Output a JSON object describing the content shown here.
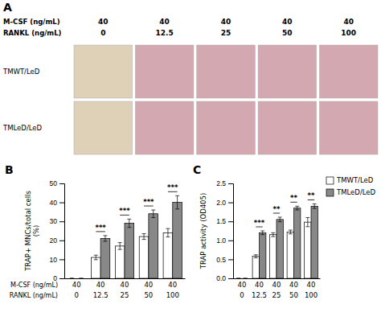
{
  "chart_data": [
    {
      "type": "tiles",
      "title": "A",
      "row_headers": [
        {
          "label": "M-CSF (ng/mL)",
          "values": [
            "40",
            "40",
            "40",
            "40",
            "40"
          ]
        },
        {
          "label": "RANKL (ng/mL)",
          "values": [
            "0",
            "12.5",
            "25",
            "50",
            "100"
          ]
        }
      ],
      "row_labels": [
        "TMWT/LeD",
        "TMLeD/LeD"
      ],
      "colors": [
        "#dfd0b8",
        "#d4a8b0",
        "#d4a8b0",
        "#d4a8b0",
        "#d4a8b0"
      ]
    },
    {
      "type": "bar",
      "title": "B",
      "y_label": "TRAP+ MNCs/total cells\n(%)",
      "categories": [
        "0",
        "12.5",
        "25",
        "50",
        "100"
      ],
      "x_label": "RANKL (ng/mL)",
      "categories_top": [
        "40",
        "40",
        "40",
        "40",
        "40"
      ],
      "x_label_top": "M-CSF (ng/mL)",
      "series": [
        {
          "name": "TMWT/LeD",
          "color": "#ffffff",
          "values": [
            0,
            11,
            17,
            22,
            24
          ],
          "errors": [
            0,
            1.2,
            1.8,
            1.5,
            2.2
          ]
        },
        {
          "name": "TMLeD/LeD",
          "color": "#888888",
          "values": [
            0,
            21,
            29,
            34,
            40
          ],
          "errors": [
            0,
            1.5,
            2.2,
            2.0,
            3.5
          ]
        }
      ],
      "significance": [
        null,
        "***",
        "***",
        "***",
        "***"
      ],
      "ylim": [
        0,
        50
      ],
      "yticks": [
        0,
        10,
        20,
        30,
        40,
        50
      ]
    },
    {
      "type": "bar",
      "title": "C",
      "y_label": "TRAP activity (OD405)",
      "categories": [
        "0",
        "12.5",
        "25",
        "50",
        "100"
      ],
      "categories_top": [
        "40",
        "40",
        "40",
        "40",
        "40"
      ],
      "series": [
        {
          "name": "TMWT/LeD",
          "color": "#ffffff",
          "values": [
            0,
            0.58,
            1.15,
            1.22,
            1.48
          ],
          "errors": [
            0,
            0.04,
            0.05,
            0.05,
            0.12
          ]
        },
        {
          "name": "TMLeD/LeD",
          "color": "#888888",
          "values": [
            0,
            1.2,
            1.55,
            1.85,
            1.9
          ],
          "errors": [
            0,
            0.05,
            0.06,
            0.05,
            0.06
          ]
        }
      ],
      "significance": [
        null,
        "***",
        "**",
        "**",
        "**"
      ],
      "ylim": [
        0,
        2.5
      ],
      "yticks": [
        {
          "value": 0,
          "label": "0.0"
        },
        0.5,
        {
          "value": 1.0,
          "label": "1.0"
        },
        1.5,
        {
          "value": 2.0,
          "label": "2.0"
        },
        2.5
      ],
      "legend": "right"
    }
  ]
}
